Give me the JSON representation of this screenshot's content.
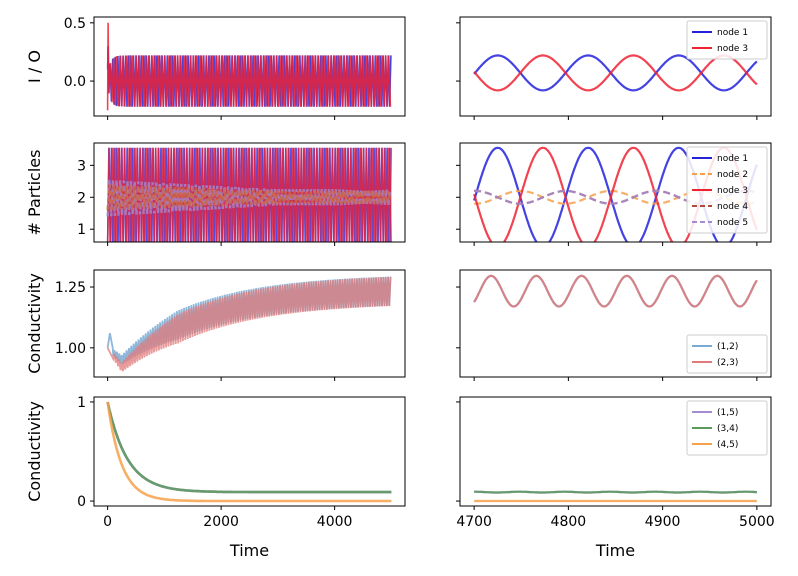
{
  "chart_data": [
    {
      "type": "line",
      "panel": "left-1",
      "ylabel": "I / O",
      "xlim": [
        -240,
        5240
      ],
      "ylim": [
        -0.3,
        0.55
      ],
      "xticks": [
        0,
        2000,
        4000
      ],
      "yticks": [
        0.0,
        0.5
      ],
      "ytick_labels": [
        "0.0",
        "0.5"
      ],
      "show_x_tick_labels": false,
      "series": [
        {
          "color": "#2222dd",
          "start": 0.1,
          "spike": 0.3,
          "center": 0.0,
          "amp_start": 0.05,
          "amp_end": 0.22,
          "tau": 50
        },
        {
          "color": "#ee2233",
          "start": -0.25,
          "spike": 0.5,
          "center": 0.0,
          "amp_start": 0.05,
          "amp_end": 0.22,
          "tau": 50
        }
      ]
    },
    {
      "type": "line",
      "panel": "right-1",
      "xlim": [
        4685,
        5015
      ],
      "ylim": [
        -0.3,
        0.55
      ],
      "xticks": [
        4700,
        4800,
        4900,
        5000
      ],
      "show_x_tick_labels": false,
      "show_y_tick_labels": false,
      "legend": "top-right",
      "series": [
        {
          "name": "node 1",
          "color": "#2222dd",
          "center": 0.07,
          "amplitude": 0.15,
          "period": 96,
          "phase": 4725
        },
        {
          "name": "node 3",
          "color": "#ee2233",
          "center": 0.07,
          "amplitude": 0.15,
          "period": 96,
          "phase": 4773
        }
      ]
    },
    {
      "type": "line",
      "panel": "left-2",
      "ylabel": "# Particles",
      "xlim": [
        -240,
        5240
      ],
      "ylim": [
        0.6,
        3.7
      ],
      "xticks": [
        0,
        2000,
        4000
      ],
      "yticks": [
        1,
        2,
        3
      ],
      "ytick_labels": [
        "1",
        "2",
        "3"
      ],
      "show_x_tick_labels": false,
      "series": [
        {
          "color": "#2222dd",
          "band": [
            0.45,
            3.55
          ]
        },
        {
          "color": "#ee2233",
          "band": [
            0.5,
            3.55
          ]
        },
        {
          "color": "#a38bd0",
          "band": [
            1.4,
            2.55
          ],
          "band_end": [
            1.75,
            2.25
          ],
          "dashed": true
        },
        {
          "color": "#cc6644",
          "band": [
            1.6,
            2.4
          ],
          "band_end": [
            1.8,
            2.2
          ],
          "dashed": true
        }
      ]
    },
    {
      "type": "line",
      "panel": "right-2",
      "xlim": [
        4685,
        5015
      ],
      "ylim": [
        0.6,
        3.7
      ],
      "xticks": [
        4700,
        4800,
        4900,
        5000
      ],
      "show_x_tick_labels": false,
      "show_y_tick_labels": false,
      "legend": "top-right",
      "series": [
        {
          "name": "node 1",
          "color": "#2222dd",
          "center": 2.0,
          "amplitude": 1.55,
          "period": 96,
          "phase": 4725,
          "dashed": false
        },
        {
          "name": "node 2",
          "color": "#f5a14a",
          "center": 2.0,
          "amplitude": 0.2,
          "period": 96,
          "phase": 4749,
          "dashed": true
        },
        {
          "name": "node 3",
          "color": "#ee2233",
          "center": 2.0,
          "amplitude": 1.55,
          "period": 96,
          "phase": 4773,
          "dashed": false
        },
        {
          "name": "node 4",
          "color": "#b04a3a",
          "center": 2.0,
          "amplitude": 0.2,
          "period": 96,
          "phase": 4797,
          "dashed": true
        },
        {
          "name": "node 5",
          "color": "#a38bd0",
          "center": 2.0,
          "amplitude": 0.2,
          "period": 96,
          "phase": 4701,
          "dashed": true
        }
      ]
    },
    {
      "type": "line",
      "panel": "left-3",
      "ylabel": "Conductivity",
      "xlim": [
        -240,
        5240
      ],
      "ylim": [
        0.88,
        1.32
      ],
      "xticks": [
        0,
        2000,
        4000
      ],
      "yticks": [
        1.0,
        1.25
      ],
      "ytick_labels": [
        "1.00",
        "1.25"
      ],
      "show_x_tick_labels": false,
      "series": [
        {
          "color": "#7aaad4",
          "start": 1.0,
          "spike": 1.06,
          "min": 0.95,
          "min_at": 250,
          "end_center": 1.245,
          "end_amp": 0.06
        },
        {
          "color": "#e07a7a",
          "start": 1.0,
          "min": 0.92,
          "min_at": 250,
          "end_center": 1.245,
          "end_amp": 0.06
        }
      ]
    },
    {
      "type": "line",
      "panel": "right-3",
      "xlim": [
        4685,
        5015
      ],
      "ylim": [
        0.88,
        1.32
      ],
      "xticks": [
        4700,
        4800,
        4900,
        5000
      ],
      "show_x_tick_labels": false,
      "show_y_tick_labels": false,
      "legend": "bottom-right",
      "series": [
        {
          "name": "(1,2)",
          "color": "#7aaad4",
          "center": 1.233,
          "amplitude": 0.063,
          "period": 48,
          "phase": 4718
        },
        {
          "name": "(2,3)",
          "color": "#e07a7a",
          "center": 1.233,
          "amplitude": 0.063,
          "period": 48,
          "phase": 4718
        }
      ]
    },
    {
      "type": "line",
      "panel": "left-4",
      "ylabel": "Conductivity",
      "xlabel": "Time",
      "xlim": [
        -240,
        5240
      ],
      "ylim": [
        -0.05,
        1.05
      ],
      "xticks": [
        0,
        2000,
        4000
      ],
      "xtick_labels": [
        "0",
        "2000",
        "4000"
      ],
      "yticks": [
        0,
        1
      ],
      "ytick_labels": [
        "0",
        "1"
      ],
      "series": [
        {
          "color": "#a38bd0",
          "start": 1.0,
          "end": 0.09,
          "tau": 350
        },
        {
          "color": "#5a9a5a",
          "start": 1.0,
          "end": 0.09,
          "tau": 350
        },
        {
          "color": "#f5a14a",
          "start": 1.0,
          "end": 0.0,
          "tau": 250
        }
      ]
    },
    {
      "type": "line",
      "panel": "right-4",
      "xlabel": "Time",
      "xlim": [
        4685,
        5015
      ],
      "ylim": [
        -0.05,
        1.05
      ],
      "xticks": [
        4700,
        4800,
        4900,
        5000
      ],
      "xtick_labels": [
        "4700",
        "4800",
        "4900",
        "5000"
      ],
      "show_y_tick_labels": false,
      "legend": "top-right",
      "series": [
        {
          "name": "(1,5)",
          "color": "#a38bd0",
          "center": 0.09,
          "amplitude": 0.004,
          "period": 48
        },
        {
          "name": "(3,4)",
          "color": "#5a9a5a",
          "center": 0.09,
          "amplitude": 0.004,
          "period": 48
        },
        {
          "name": "(4,5)",
          "color": "#f5a14a",
          "center": 0.0,
          "amplitude": 0.0,
          "period": 48
        }
      ]
    }
  ]
}
